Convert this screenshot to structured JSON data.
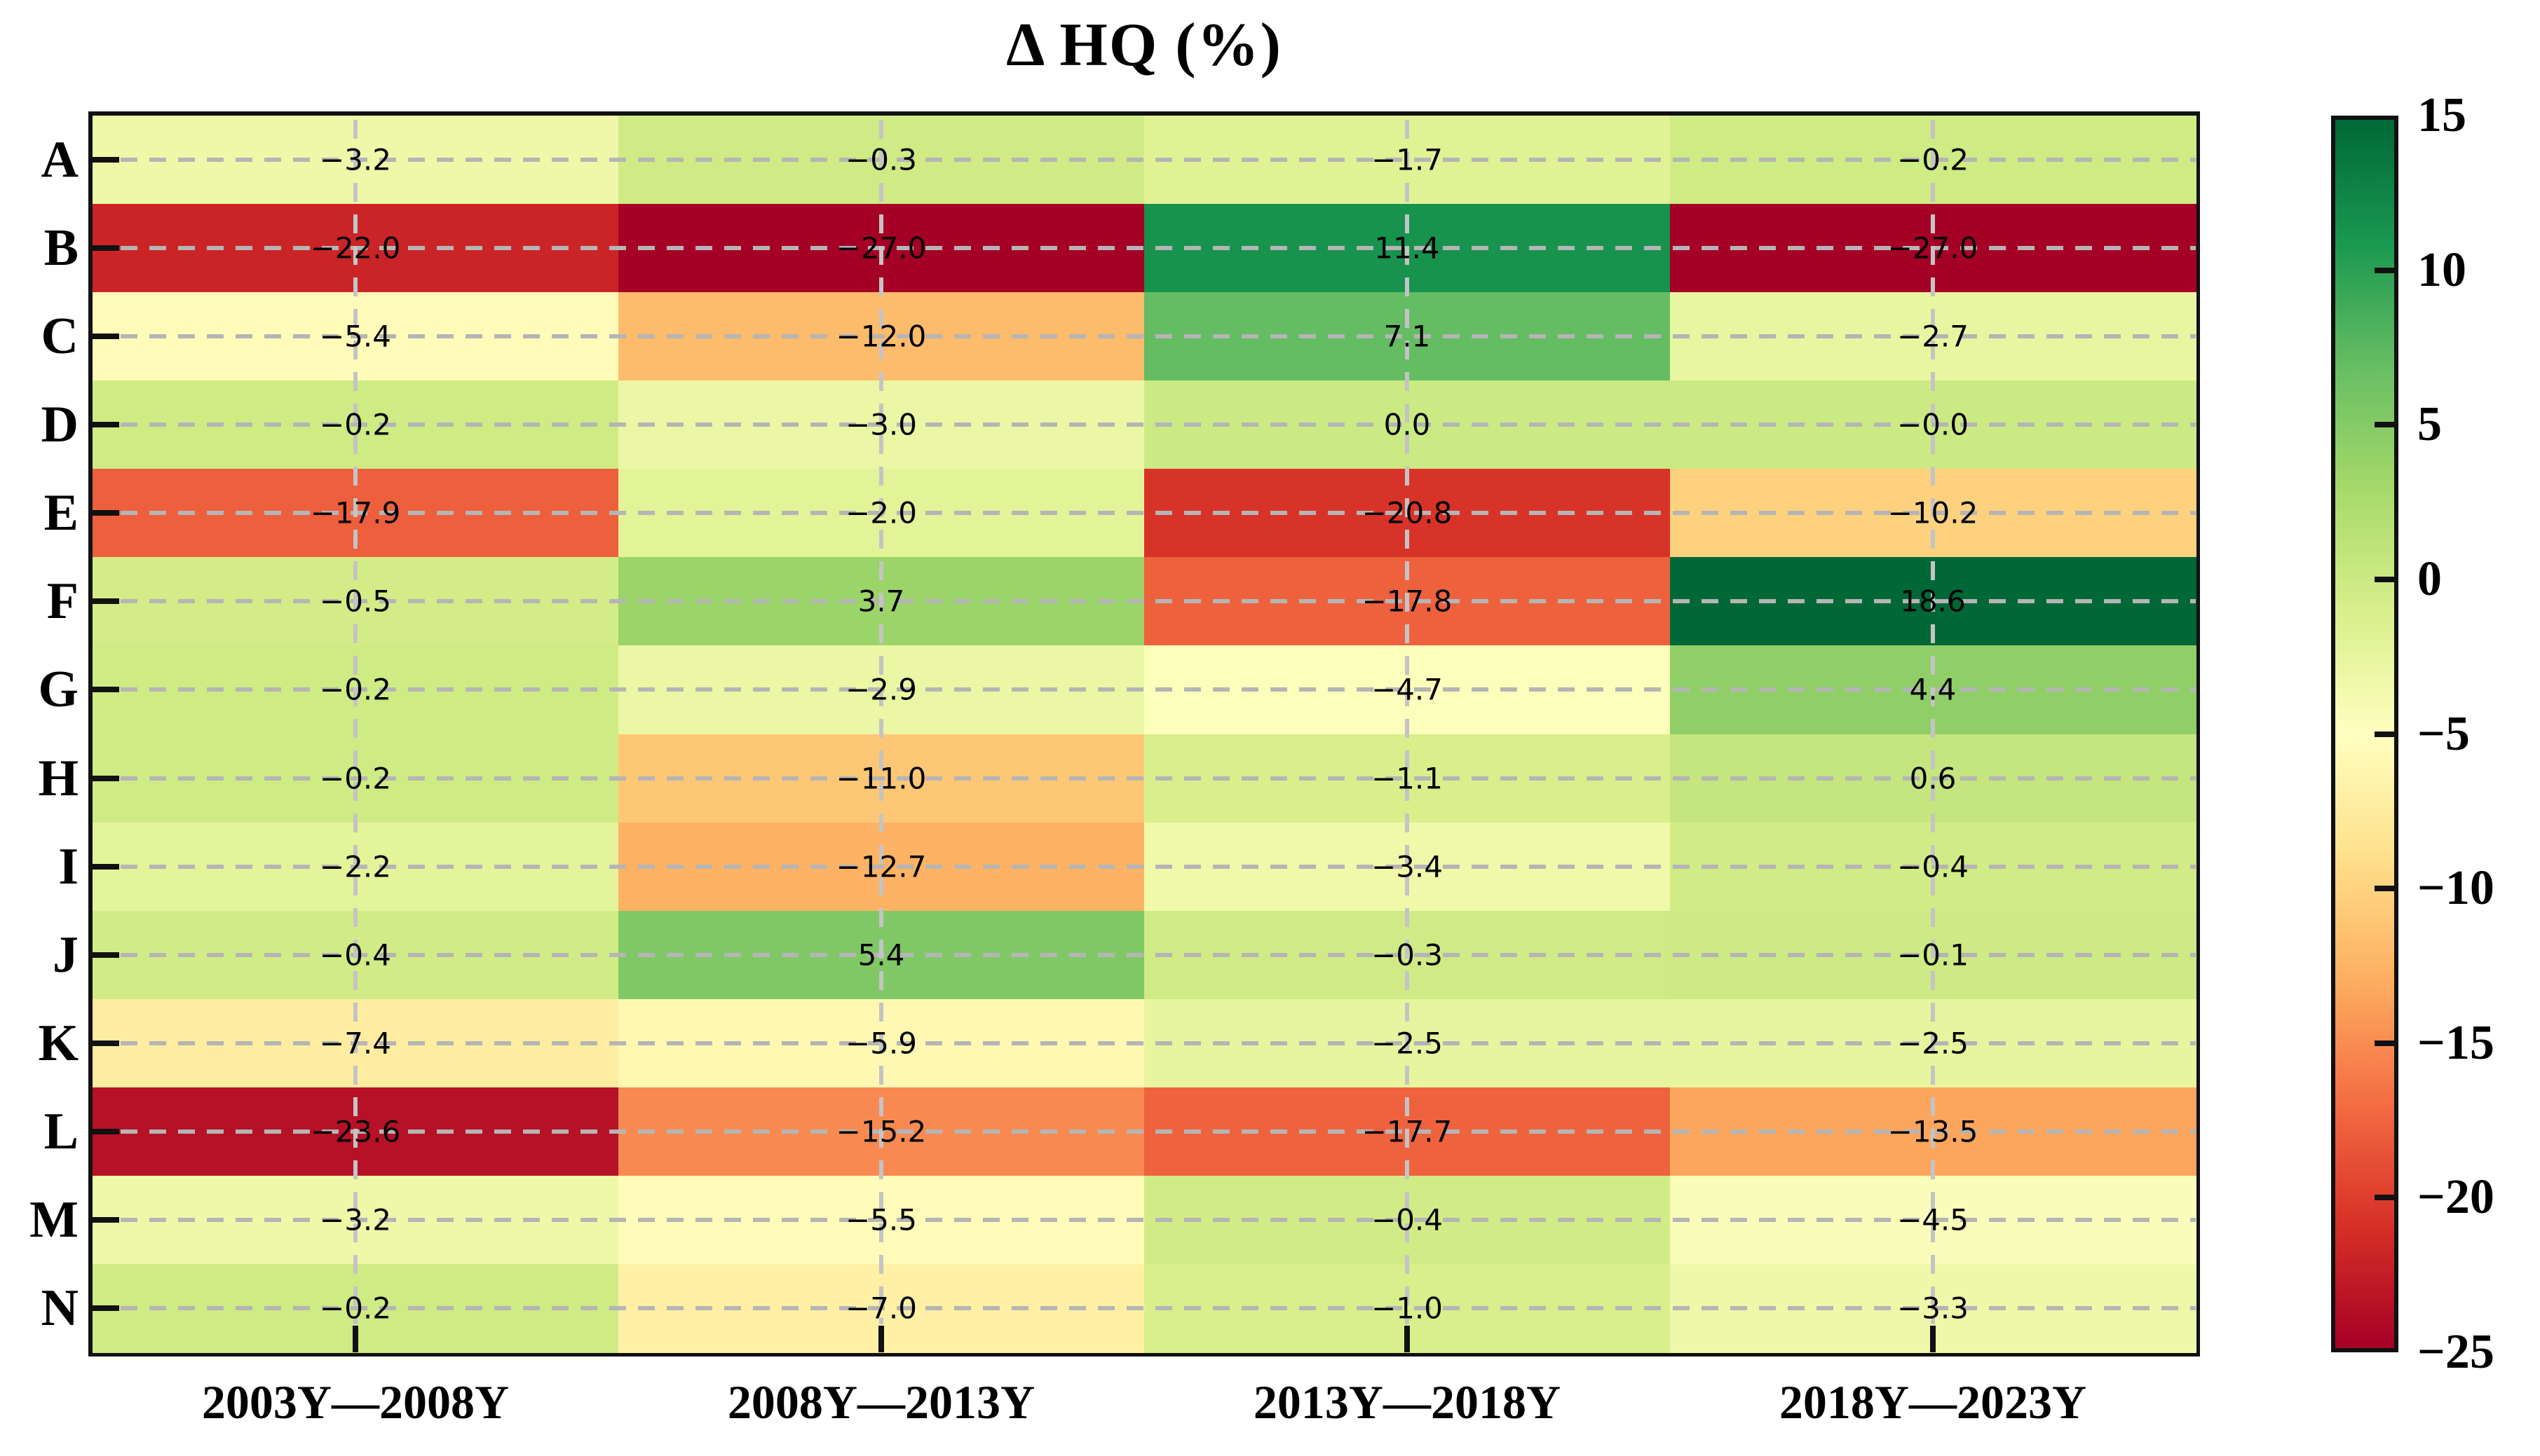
{
  "title": "Δ HQ (%)",
  "chart_data": {
    "type": "heatmap",
    "title": "Δ HQ (%)",
    "rows": [
      "A",
      "B",
      "C",
      "D",
      "E",
      "F",
      "G",
      "H",
      "I",
      "J",
      "K",
      "L",
      "M",
      "N"
    ],
    "columns": [
      "2003Y—2008Y",
      "2008Y—2013Y",
      "2013Y—2018Y",
      "2018Y—2023Y"
    ],
    "values": [
      [
        -3.2,
        -0.3,
        -1.7,
        -0.2
      ],
      [
        -22.0,
        -27.0,
        11.4,
        -27.0
      ],
      [
        -5.4,
        -12.0,
        7.1,
        -2.7
      ],
      [
        -0.2,
        -3.0,
        0.0,
        -0.0
      ],
      [
        -17.9,
        -2.0,
        -20.8,
        -10.2
      ],
      [
        -0.5,
        3.7,
        -17.8,
        18.6
      ],
      [
        -0.2,
        -2.9,
        -4.7,
        4.4
      ],
      [
        -0.2,
        -11.0,
        -1.1,
        0.6
      ],
      [
        -2.2,
        -12.7,
        -3.4,
        -0.4
      ],
      [
        -0.4,
        5.4,
        -0.3,
        -0.1
      ],
      [
        -7.4,
        -5.9,
        -2.5,
        -2.5
      ],
      [
        -23.6,
        -15.2,
        -17.7,
        -13.5
      ],
      [
        -3.2,
        -5.5,
        -0.4,
        -4.5
      ],
      [
        -0.2,
        -7.0,
        -1.0,
        -3.3
      ]
    ],
    "value_format_decimals": 1,
    "vmin": -25,
    "vmax": 15,
    "colormap": "RdYlGn",
    "colormap_colors": [
      "#a50026",
      "#d73027",
      "#f46d43",
      "#fdae61",
      "#fee08b",
      "#ffffbf",
      "#d9ef8b",
      "#a6d96a",
      "#66bd63",
      "#1a9850",
      "#006837"
    ],
    "colorbar_ticks": [
      15,
      10,
      5,
      0,
      -5,
      -10,
      -15,
      -20,
      -25
    ],
    "grid": true,
    "annotation_color": "#000000"
  }
}
